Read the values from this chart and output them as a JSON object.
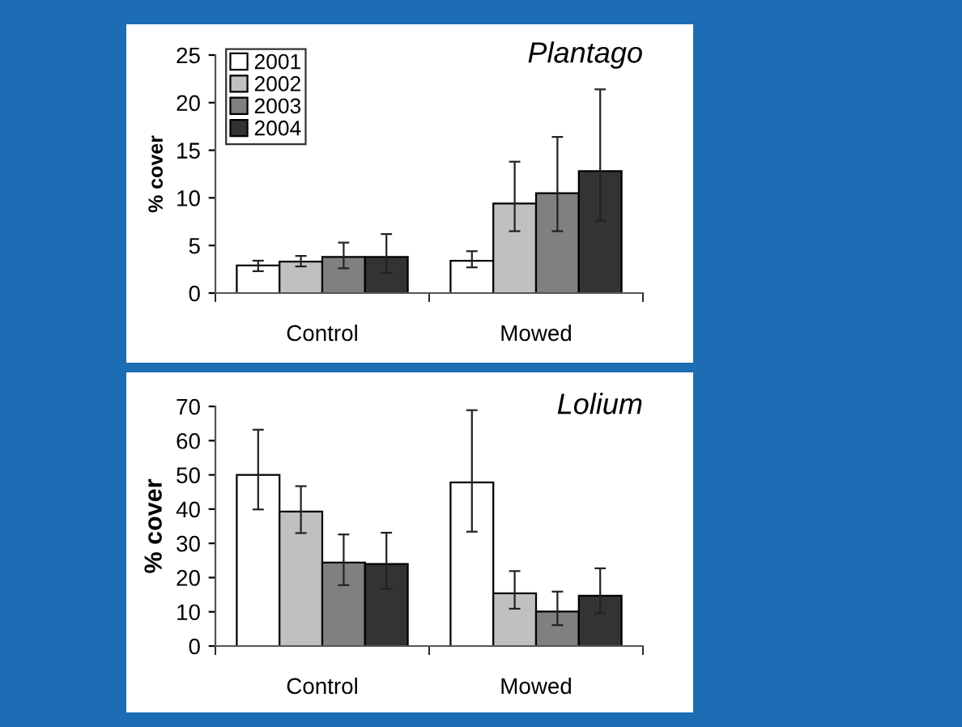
{
  "chart_data": [
    {
      "type": "bar",
      "title": "Plantago",
      "ylabel": "% cover",
      "categories": [
        "Control",
        "Mowed"
      ],
      "ylim": [
        0,
        25
      ],
      "yticks": [
        0,
        5,
        10,
        15,
        20,
        25
      ],
      "legend": "top left",
      "grid": false,
      "series": [
        {
          "name": "2001",
          "color": "#ffffff",
          "values": [
            2.9,
            3.4
          ],
          "errors": [
            [
              2.3,
              3.4
            ],
            [
              2.7,
              4.4
            ]
          ]
        },
        {
          "name": "2002",
          "color": "#c0c0c0",
          "values": [
            3.3,
            9.4
          ],
          "errors": [
            [
              2.8,
              3.9
            ],
            [
              6.5,
              13.8
            ]
          ]
        },
        {
          "name": "2003",
          "color": "#808080",
          "values": [
            3.8,
            10.5
          ],
          "errors": [
            [
              2.6,
              5.3
            ],
            [
              6.5,
              16.4
            ]
          ]
        },
        {
          "name": "2004",
          "color": "#333333",
          "values": [
            3.8,
            12.8
          ],
          "errors": [
            [
              2.1,
              6.2
            ],
            [
              7.6,
              21.4
            ]
          ]
        }
      ]
    },
    {
      "type": "bar",
      "title": "Lolium",
      "ylabel": "% cover",
      "categories": [
        "Control",
        "Mowed"
      ],
      "ylim": [
        0,
        70
      ],
      "yticks": [
        0,
        10,
        20,
        30,
        40,
        50,
        60,
        70
      ],
      "grid": false,
      "series": [
        {
          "color": "#ffffff",
          "values": [
            50,
            47.8
          ],
          "errors": [
            [
              39.9,
              63.2
            ],
            [
              33.4,
              68.9
            ]
          ]
        },
        {
          "color": "#c0c0c0",
          "values": [
            39.3,
            15.4
          ],
          "errors": [
            [
              33,
              46.7
            ],
            [
              10.9,
              21.9
            ]
          ]
        },
        {
          "color": "#808080",
          "values": [
            24.4,
            10.1
          ],
          "errors": [
            [
              17.8,
              32.6
            ],
            [
              6.1,
              15.9
            ]
          ]
        },
        {
          "color": "#333333",
          "values": [
            24,
            14.7
          ],
          "errors": [
            [
              16.7,
              33.1
            ],
            [
              9.6,
              22.7
            ]
          ]
        }
      ]
    }
  ]
}
